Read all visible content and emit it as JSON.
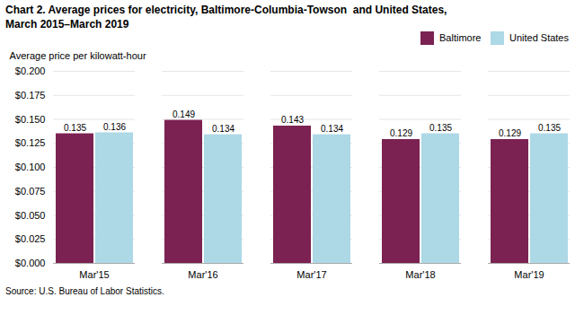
{
  "chart_data": {
    "type": "bar",
    "title": "Chart 2. Average prices for electricity, Baltimore-Columbia-Towson  and United States,",
    "subtitle": "March 2015–March 2019",
    "y_label": "Average price per kilowatt-hour",
    "caption": "Source: U.S. Bureau of Labor Statistics.",
    "categories": [
      "Mar'15",
      "Mar'16",
      "Mar'17",
      "Mar'18",
      "Mar'19"
    ],
    "series": [
      {
        "name": "Baltimore",
        "color": "#7B2252",
        "values": [
          0.135,
          0.149,
          0.143,
          0.129,
          0.129
        ]
      },
      {
        "name": "United States",
        "color": "#ADD8E6",
        "values": [
          0.136,
          0.134,
          0.134,
          0.135,
          0.135
        ]
      }
    ],
    "ylim": [
      0,
      0.2
    ],
    "yticks": [
      {
        "value": 0,
        "label": "$0.000"
      },
      {
        "value": 0.025,
        "label": "$0.025"
      },
      {
        "value": 0.05,
        "label": "$0.050"
      },
      {
        "value": 0.075,
        "label": "$0.075"
      },
      {
        "value": 0.1,
        "label": "$0.100"
      },
      {
        "value": 0.125,
        "label": "$0.125"
      },
      {
        "value": 0.15,
        "label": "$0.150"
      },
      {
        "value": 0.175,
        "label": "$0.175"
      },
      {
        "value": 0.2,
        "label": "$0.200"
      }
    ],
    "grid": true,
    "legend": "upper right",
    "data_labels": true
  }
}
